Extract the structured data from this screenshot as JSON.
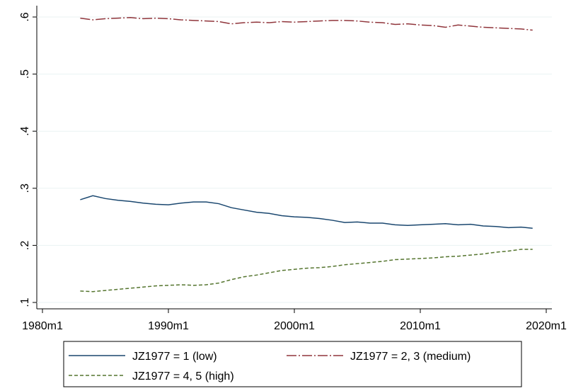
{
  "chart_data": {
    "type": "line",
    "x": [
      "1983m1",
      "1984m1",
      "1985m1",
      "1986m1",
      "1987m1",
      "1988m1",
      "1989m1",
      "1990m1",
      "1991m1",
      "1992m1",
      "1993m1",
      "1994m1",
      "1995m1",
      "1996m1",
      "1997m1",
      "1998m1",
      "1999m1",
      "2000m1",
      "2001m1",
      "2002m1",
      "2003m1",
      "2004m1",
      "2005m1",
      "2006m1",
      "2007m1",
      "2008m1",
      "2009m1",
      "2010m1",
      "2011m1",
      "2012m1",
      "2013m1",
      "2014m1",
      "2015m1",
      "2016m1",
      "2017m1",
      "2018m1",
      "2018m12"
    ],
    "series": [
      {
        "name": "JZ1977 = 1 (low)",
        "color": "#1a476f",
        "dash": "solid",
        "values": [
          0.28,
          0.287,
          0.282,
          0.279,
          0.277,
          0.274,
          0.272,
          0.271,
          0.274,
          0.276,
          0.276,
          0.273,
          0.266,
          0.262,
          0.258,
          0.256,
          0.252,
          0.25,
          0.249,
          0.247,
          0.244,
          0.24,
          0.241,
          0.239,
          0.239,
          0.236,
          0.235,
          0.236,
          0.237,
          0.238,
          0.236,
          0.237,
          0.234,
          0.233,
          0.231,
          0.232,
          0.23
        ]
      },
      {
        "name": "JZ1977 = 2, 3 (medium)",
        "color": "#90353b",
        "dash": "longdash-dot",
        "values": [
          0.598,
          0.595,
          0.597,
          0.598,
          0.599,
          0.597,
          0.598,
          0.597,
          0.595,
          0.594,
          0.593,
          0.592,
          0.588,
          0.59,
          0.591,
          0.59,
          0.592,
          0.591,
          0.592,
          0.593,
          0.594,
          0.594,
          0.593,
          0.591,
          0.59,
          0.587,
          0.588,
          0.586,
          0.585,
          0.582,
          0.586,
          0.584,
          0.582,
          0.581,
          0.58,
          0.579,
          0.577
        ]
      },
      {
        "name": "JZ1977 = 4, 5 (high)",
        "color": "#55752f",
        "dash": "shortdash",
        "values": [
          0.12,
          0.119,
          0.121,
          0.123,
          0.125,
          0.127,
          0.129,
          0.13,
          0.131,
          0.13,
          0.131,
          0.134,
          0.14,
          0.145,
          0.148,
          0.152,
          0.156,
          0.158,
          0.16,
          0.161,
          0.163,
          0.166,
          0.168,
          0.17,
          0.172,
          0.175,
          0.176,
          0.177,
          0.178,
          0.18,
          0.181,
          0.183,
          0.185,
          0.188,
          0.19,
          0.193,
          0.193
        ]
      }
    ],
    "xlim": [
      "1980m1",
      "2020m1"
    ],
    "xticks": [
      "1980m1",
      "1990m1",
      "2000m1",
      "2010m1",
      "2020m1"
    ],
    "ylim": [
      0.1,
      0.6
    ],
    "yticks": [
      {
        "value": 0.1,
        "label": ".1"
      },
      {
        "value": 0.2,
        "label": ".2"
      },
      {
        "value": 0.3,
        "label": ".3"
      },
      {
        "value": 0.4,
        "label": ".4"
      },
      {
        "value": 0.5,
        "label": ".5"
      },
      {
        "value": 0.6,
        "label": ".6"
      }
    ],
    "grid": true,
    "legend": "bottom"
  }
}
